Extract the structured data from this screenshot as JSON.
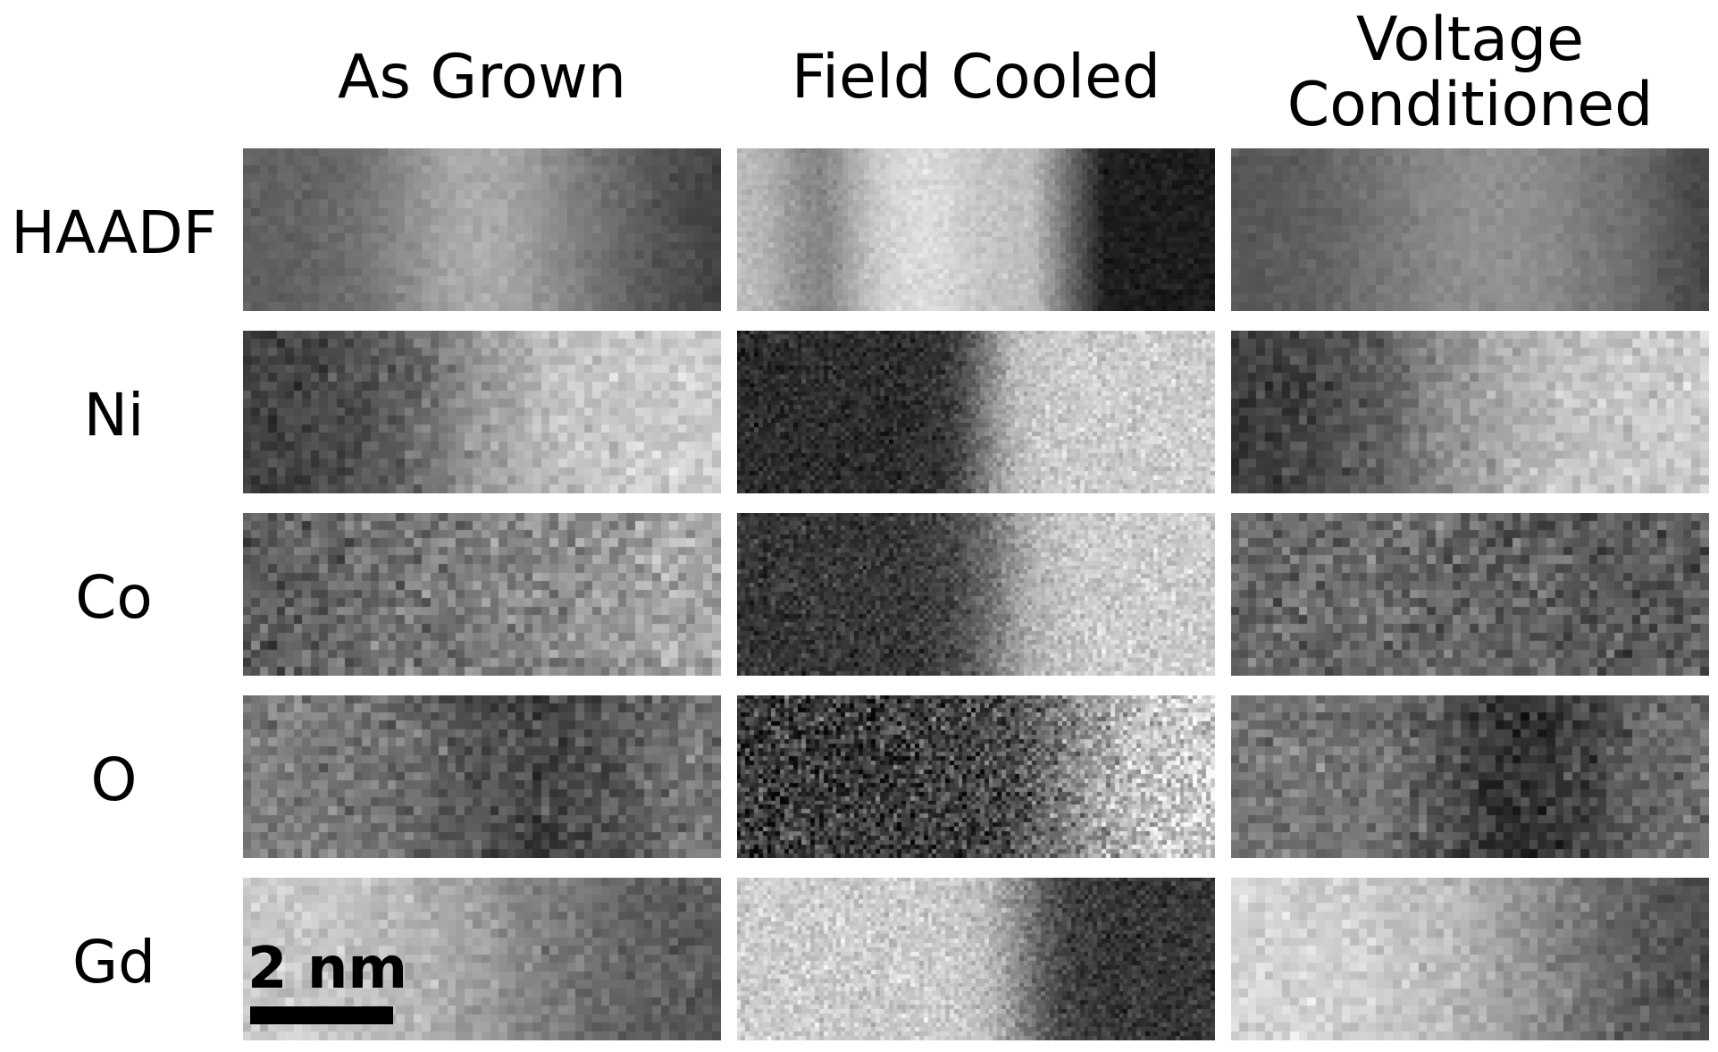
{
  "figure": {
    "columns": [
      {
        "id": "as-grown",
        "title": "As Grown"
      },
      {
        "id": "field-cooled",
        "title": "Field Cooled"
      },
      {
        "id": "voltage-conditioned",
        "title": "Voltage\nConditioned"
      }
    ],
    "rows": [
      {
        "id": "haadf",
        "label": "HAADF"
      },
      {
        "id": "ni",
        "label": "Ni"
      },
      {
        "id": "co",
        "label": "Co"
      },
      {
        "id": "o",
        "label": "O"
      },
      {
        "id": "gd",
        "label": "Gd"
      }
    ],
    "scale_bar": {
      "label": "2 nm"
    }
  }
}
